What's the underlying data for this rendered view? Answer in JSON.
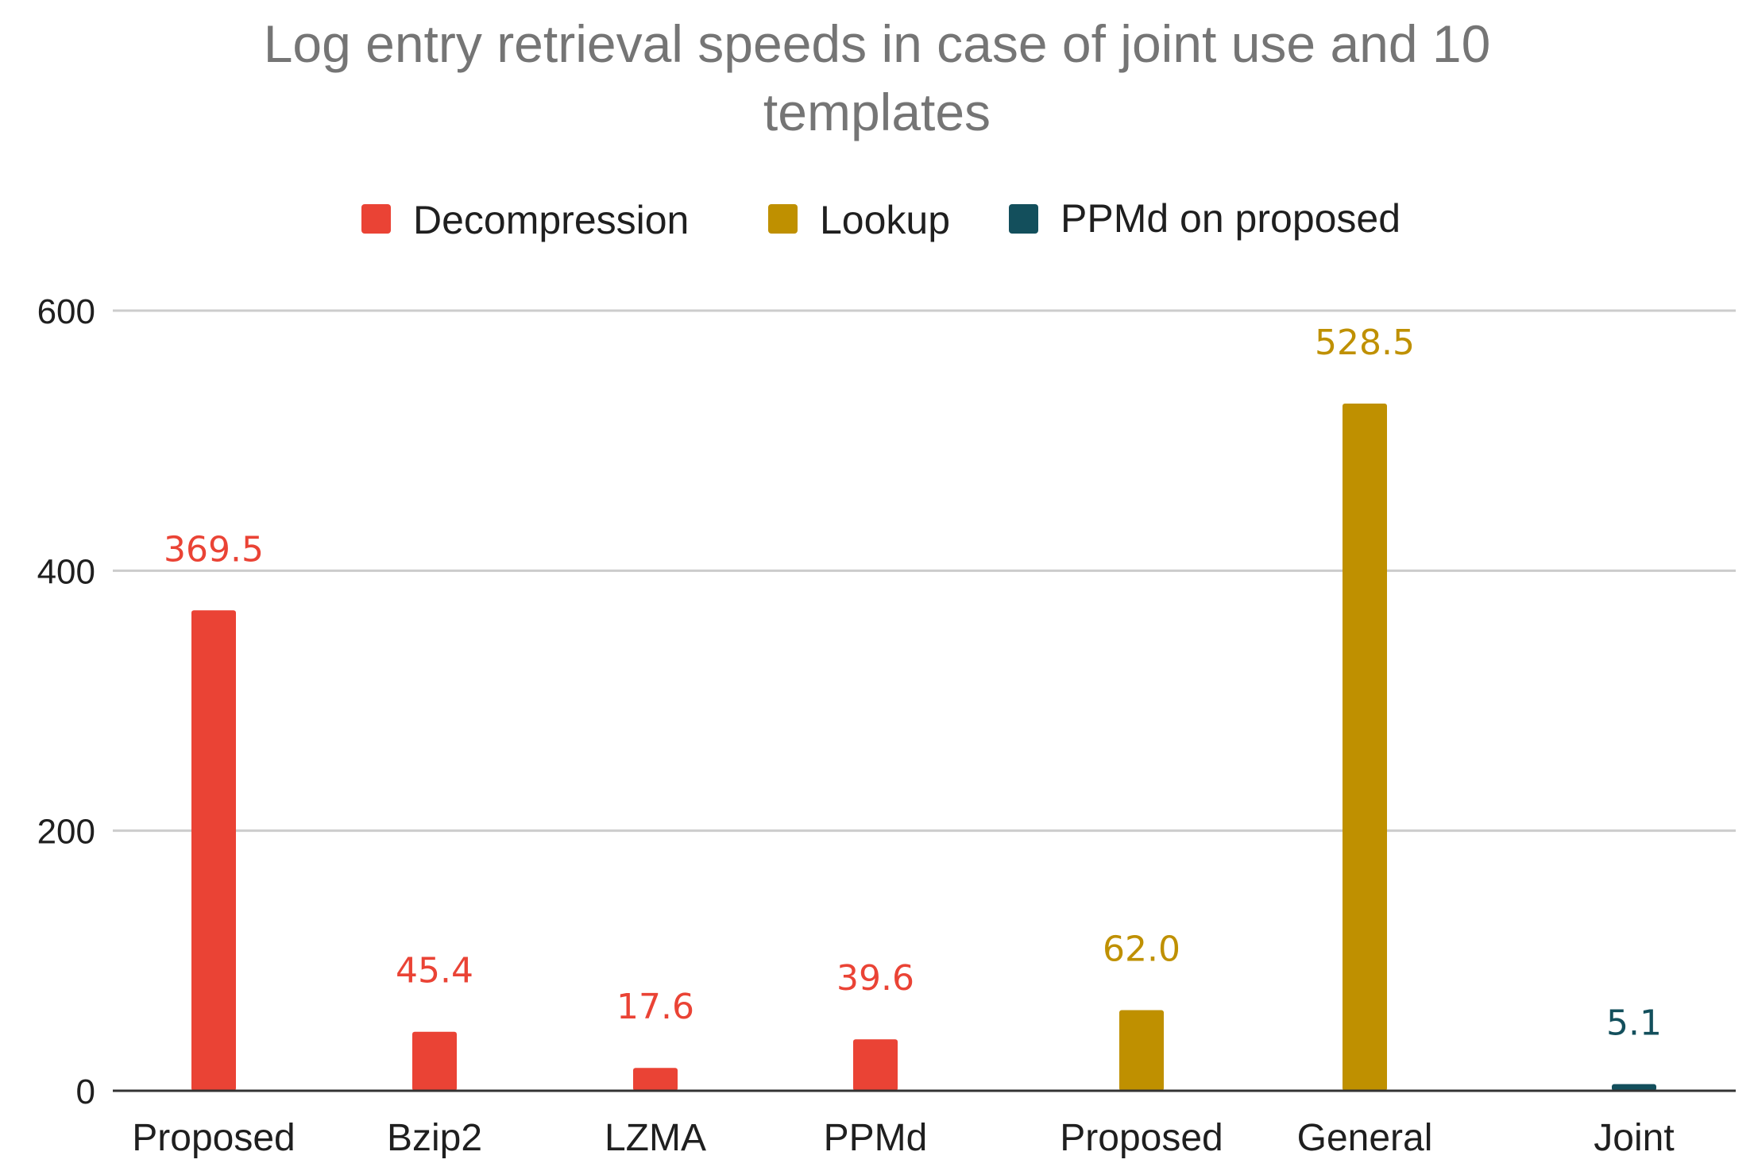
{
  "chart_data": {
    "type": "bar",
    "title": "Log entry retrieval speeds in case of joint use and 10 templates",
    "title_lines": [
      "Log entry retrieval speeds in case of joint use and 10",
      "templates"
    ],
    "xlabel": "",
    "ylabel": "",
    "ylim": [
      0,
      600
    ],
    "yticks": [
      0,
      200,
      400,
      600
    ],
    "grid": true,
    "legend_position": "top-center",
    "categories": [
      "Proposed",
      "Bzip2",
      "LZMA",
      "PPMd",
      "Proposed",
      "General",
      "Joint"
    ],
    "series": [
      {
        "name": "Decompression",
        "color": "#ea4335",
        "values": [
          369.5,
          45.4,
          17.6,
          39.6,
          null,
          null,
          null
        ],
        "labels": [
          "369.5",
          "45.4",
          "17.6",
          "39.6",
          null,
          null,
          null
        ]
      },
      {
        "name": "Lookup",
        "color": "#bf9000",
        "values": [
          null,
          null,
          null,
          null,
          62.0,
          528.5,
          null
        ],
        "labels": [
          null,
          null,
          null,
          null,
          "62.0",
          "528.5",
          null
        ]
      },
      {
        "name": "PPMd on proposed",
        "color": "#134f5c",
        "values": [
          null,
          null,
          null,
          null,
          null,
          null,
          5.1
        ],
        "labels": [
          null,
          null,
          null,
          null,
          null,
          null,
          "5.1"
        ]
      }
    ]
  }
}
